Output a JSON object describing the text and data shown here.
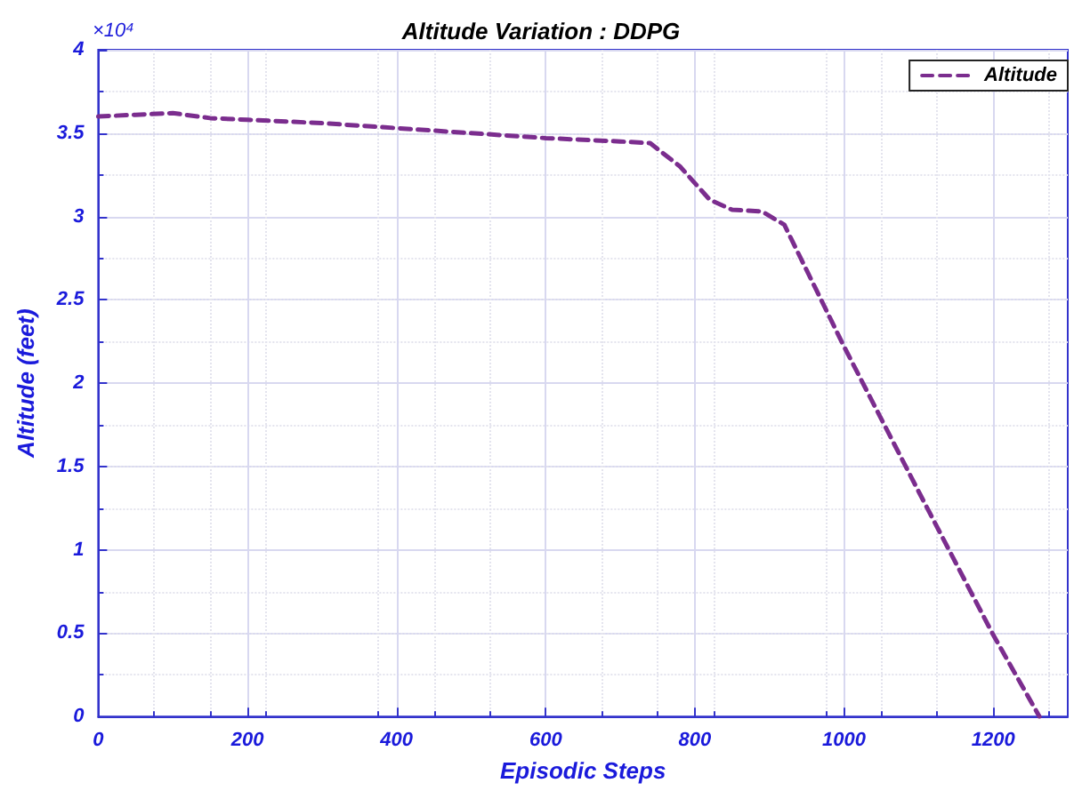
{
  "chart_data": {
    "type": "line",
    "title": "Altitude Variation : DDPG",
    "xlabel": "Episodic Steps",
    "ylabel": "Altitude (feet)",
    "annotations": [
      "×10⁴"
    ],
    "series": [
      {
        "name": "Altitude",
        "color": "#7b2d8e",
        "line_style": "dashed",
        "marker": "none",
        "x": [
          0,
          50,
          100,
          150,
          200,
          300,
          400,
          500,
          600,
          700,
          740,
          780,
          820,
          850,
          890,
          920,
          1000,
          1100,
          1200,
          1262
        ],
        "values": [
          3.6,
          3.61,
          3.62,
          3.59,
          3.58,
          3.56,
          3.53,
          3.5,
          3.47,
          3.45,
          3.44,
          3.3,
          3.1,
          3.04,
          3.03,
          2.95,
          2.22,
          1.35,
          0.49,
          0
        ]
      }
    ],
    "xlim": [
      0,
      1300
    ],
    "xticks": [
      0,
      200,
      400,
      600,
      800,
      1000,
      1200
    ],
    "ylim": [
      0,
      4
    ],
    "yticks": [
      0,
      0.5,
      1,
      1.5,
      2,
      2.5,
      3,
      3.5,
      4
    ],
    "grid": true,
    "legend": "top right"
  }
}
